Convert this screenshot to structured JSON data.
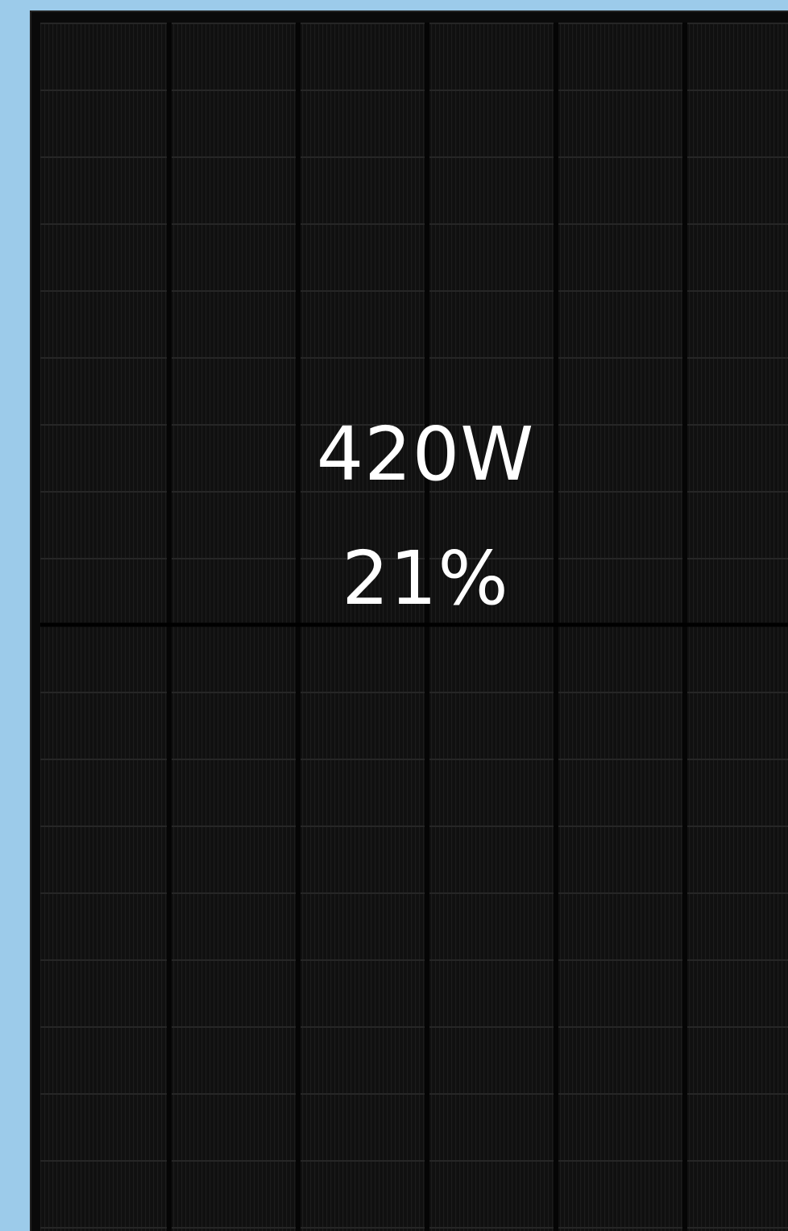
{
  "panel": {
    "power": "420W",
    "efficiency": "21%"
  }
}
